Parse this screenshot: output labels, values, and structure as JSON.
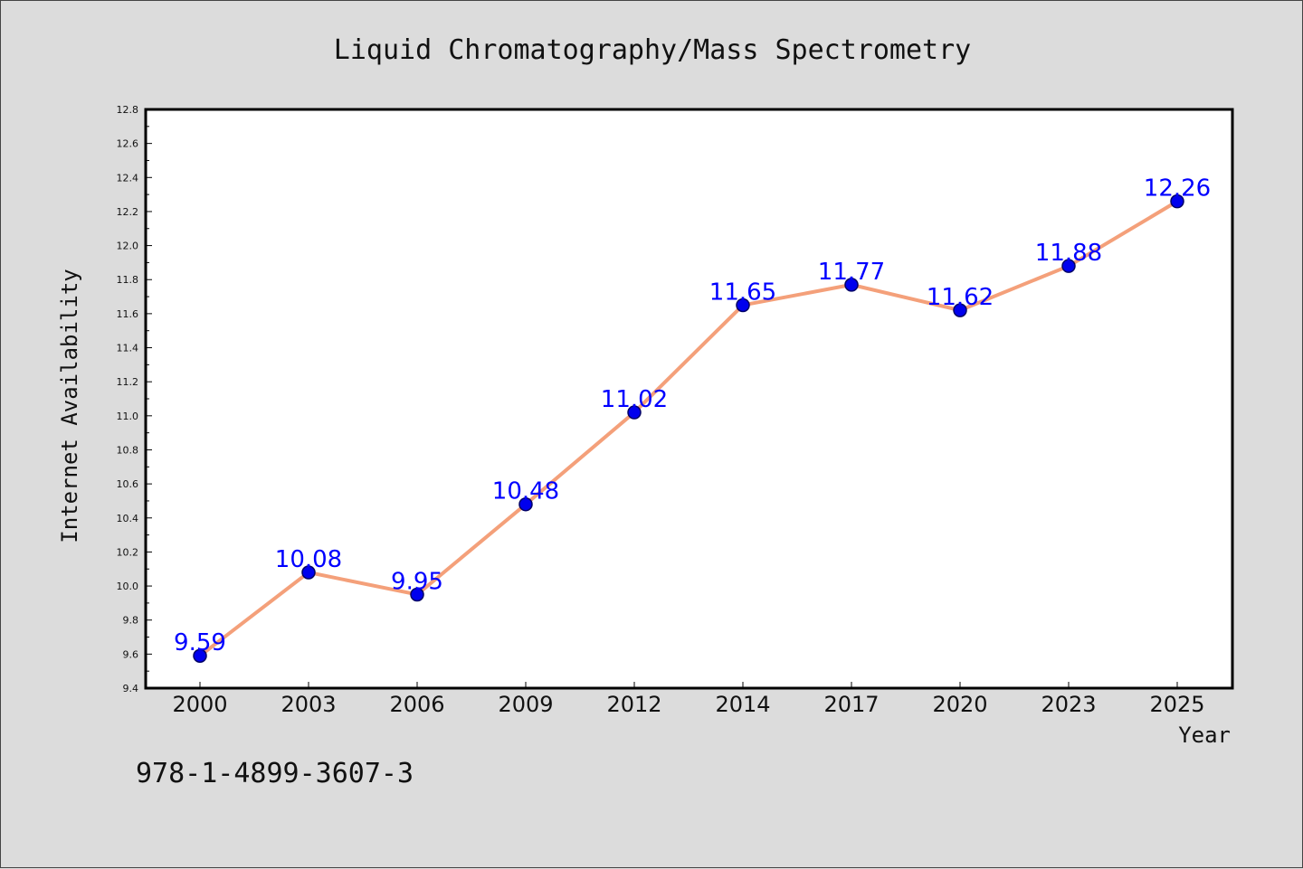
{
  "chart_data": {
    "type": "line",
    "title": "Liquid Chromatography/Mass Spectrometry",
    "xlabel": "Year",
    "ylabel": "Internet Availability",
    "categories": [
      "2000",
      "2003",
      "2006",
      "2009",
      "2012",
      "2014",
      "2017",
      "2020",
      "2023",
      "2025"
    ],
    "series": [
      {
        "values": [
          9.59,
          10.08,
          9.95,
          10.48,
          11.02,
          11.65,
          11.77,
          11.62,
          11.88,
          12.26
        ],
        "data_labels": [
          "9.59",
          "10.08",
          "9.95",
          "10.48",
          "11.02",
          "11.65",
          "11.77",
          "11.62",
          "11.88",
          "12.26"
        ]
      }
    ],
    "ylim": [
      9.4,
      12.8
    ],
    "yticks": [
      "9.4",
      "9.6",
      "9.8",
      "10.0",
      "10.2",
      "10.4",
      "10.6",
      "10.8",
      "11.0",
      "11.2",
      "11.4",
      "11.6",
      "11.8",
      "12.0",
      "12.2",
      "12.4",
      "12.6",
      "12.8"
    ],
    "grid": false,
    "legend": "none",
    "colors": {
      "line": "#f4a07a",
      "marker": "#0000ee",
      "marker_edge": "#000066",
      "data_label": "#0000ff",
      "plot_background": "#ffffff",
      "figure_background": "#dcdcdc"
    }
  },
  "footer": {
    "isbn": "978-1-4899-3607-3"
  }
}
